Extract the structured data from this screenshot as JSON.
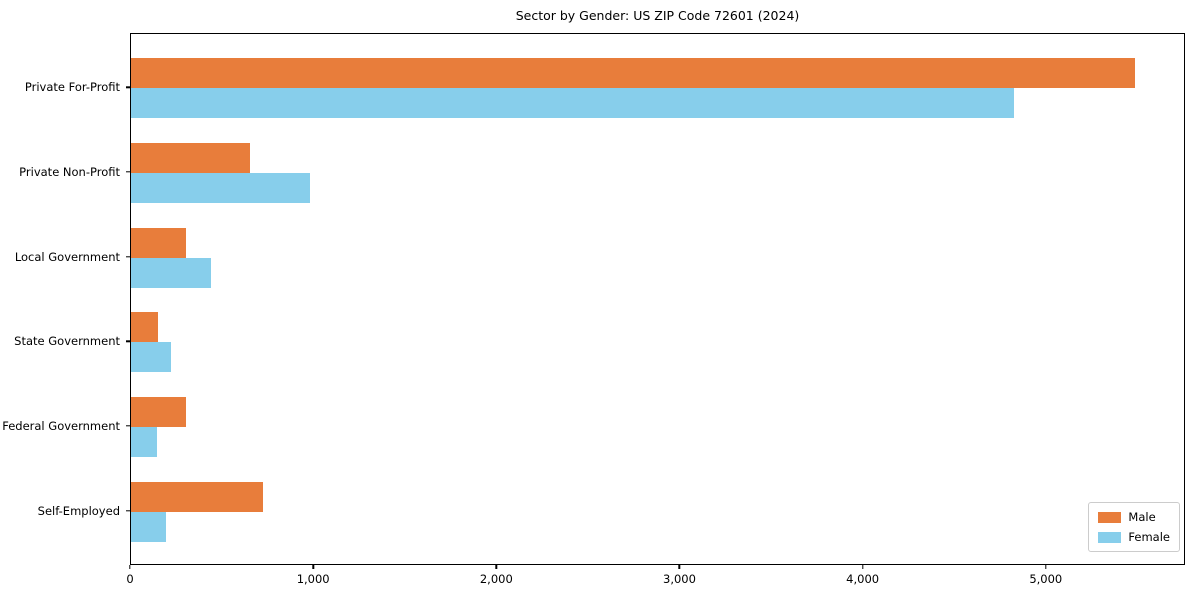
{
  "figure": {
    "title": "Sector by Gender: US ZIP Code 72601 (2024)"
  },
  "chart_data": {
    "type": "bar",
    "orientation": "horizontal",
    "title": "Sector by Gender: US ZIP Code 72601 (2024)",
    "categories": [
      "Private For-Profit",
      "Private Non-Profit",
      "Local Government",
      "State Government",
      "Federal Government",
      "Self-Employed"
    ],
    "series": [
      {
        "name": "Male",
        "color": "#e87d3b",
        "values": [
          5490,
          650,
          300,
          150,
          300,
          720
        ]
      },
      {
        "name": "Female",
        "color": "#87ceeb",
        "values": [
          4830,
          980,
          440,
          220,
          140,
          190
        ]
      }
    ],
    "xlabel": "",
    "ylabel": "",
    "xlim": [
      0,
      5760
    ],
    "x_ticks": [
      0,
      1000,
      2000,
      3000,
      4000,
      5000
    ],
    "x_tick_labels": [
      "0",
      "1,000",
      "2,000",
      "3,000",
      "4,000",
      "5,000"
    ],
    "legend": {
      "position": "lower-right",
      "entries": [
        "Male",
        "Female"
      ]
    },
    "grid": false,
    "background_color": "#ffffff",
    "spine_color": "#000000"
  }
}
